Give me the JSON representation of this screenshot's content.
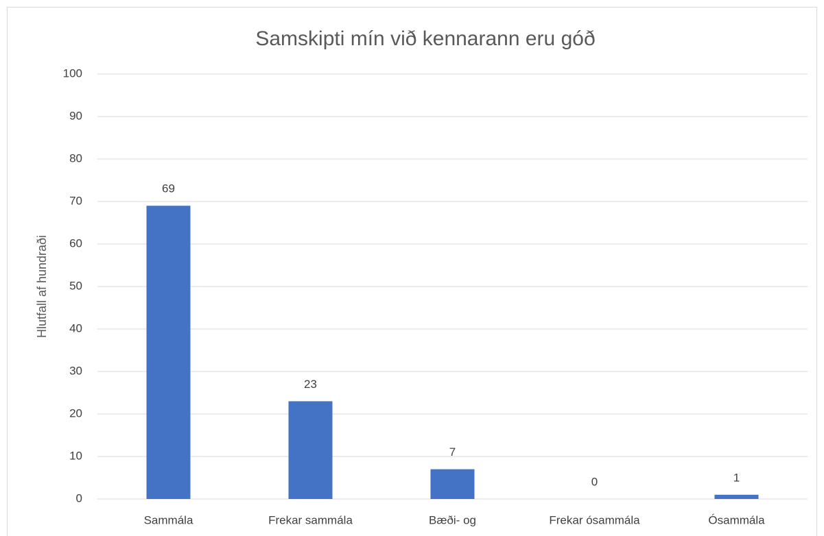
{
  "chart_data": {
    "type": "bar",
    "title": "Samskipti mín við kennarann eru góð",
    "y_label": "Hlutfall af hundraði",
    "categories": [
      "Sammála",
      "Frekar sammála",
      "Bæði- og",
      "Frekar ósammála",
      "Ósammála"
    ],
    "values": [
      69,
      23,
      7,
      0,
      1
    ],
    "color": "#4472c4",
    "ylim": [
      0,
      100
    ],
    "yticks": [
      0,
      10,
      20,
      30,
      40,
      50,
      60,
      70,
      80,
      90,
      100
    ],
    "grid": true
  }
}
